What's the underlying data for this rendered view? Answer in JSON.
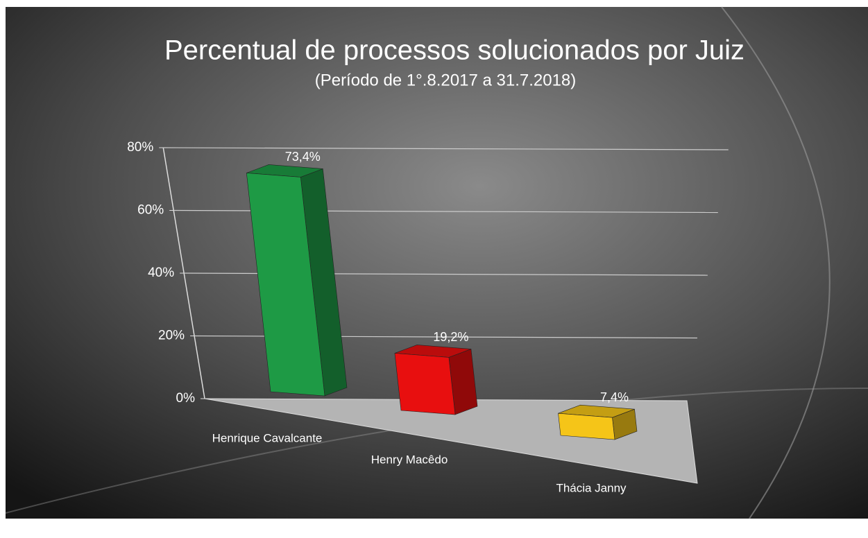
{
  "chart_data": {
    "type": "bar3d",
    "title": "Percentual de processos solucionados por Juiz",
    "subtitle": "(Período de 1°.8.2017  a  31.7.2018)",
    "categories": [
      "Henrique Cavalcante",
      "Henry Macêdo",
      "Thácia Janny"
    ],
    "values": [
      73.4,
      19.2,
      7.4
    ],
    "value_labels": [
      "73,4%",
      "19,2%",
      "7,4%"
    ],
    "colors": [
      "#1e9a45",
      "#e80f0f",
      "#f5c518"
    ],
    "ylim": [
      0,
      80
    ],
    "yticks": [
      {
        "value": 0,
        "label": "0%"
      },
      {
        "value": 20,
        "label": "20%"
      },
      {
        "value": 40,
        "label": "40%"
      },
      {
        "value": 60,
        "label": "60%"
      },
      {
        "value": 80,
        "label": "80%"
      }
    ],
    "grid": true
  }
}
